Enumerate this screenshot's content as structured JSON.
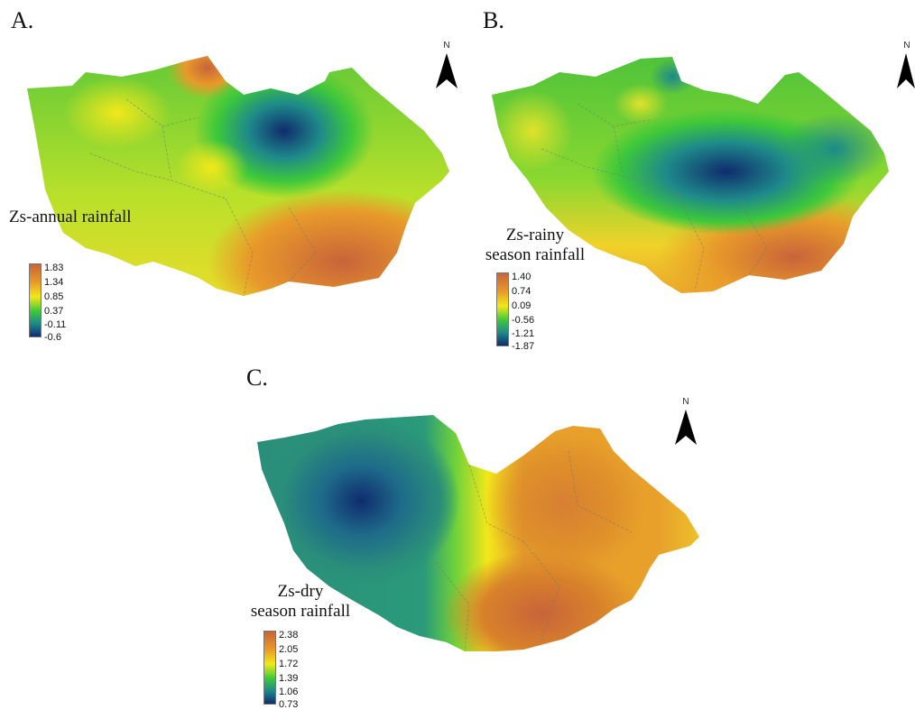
{
  "panels": [
    {
      "id": "A",
      "label": "A.",
      "north_label": "N",
      "legend_title_lines": [
        "Zs-annual rainfall"
      ],
      "legend_ticks": [
        "1.83",
        "1.34",
        "0.85",
        "0.37",
        "-0.11",
        "-0.6"
      ]
    },
    {
      "id": "B",
      "label": "B.",
      "north_label": "N",
      "legend_title_lines": [
        "Zs-rainy",
        "season rainfall"
      ],
      "legend_ticks": [
        "1.40",
        "0.74",
        "0.09",
        "-0.56",
        "-1.21",
        "-1.87"
      ]
    },
    {
      "id": "C",
      "label": "C.",
      "north_label": "N",
      "legend_title_lines": [
        "Zs-dry",
        "season rainfall"
      ],
      "legend_ticks": [
        "2.38",
        "2.05",
        "1.72",
        "1.39",
        "1.06",
        "0.73"
      ]
    }
  ],
  "colors": {
    "high": "#c8643a",
    "upper": "#e89a2a",
    "mid": "#f2e81a",
    "lower": "#3ec83a",
    "low": "#1e8a8a",
    "min": "#0f2c6e"
  }
}
